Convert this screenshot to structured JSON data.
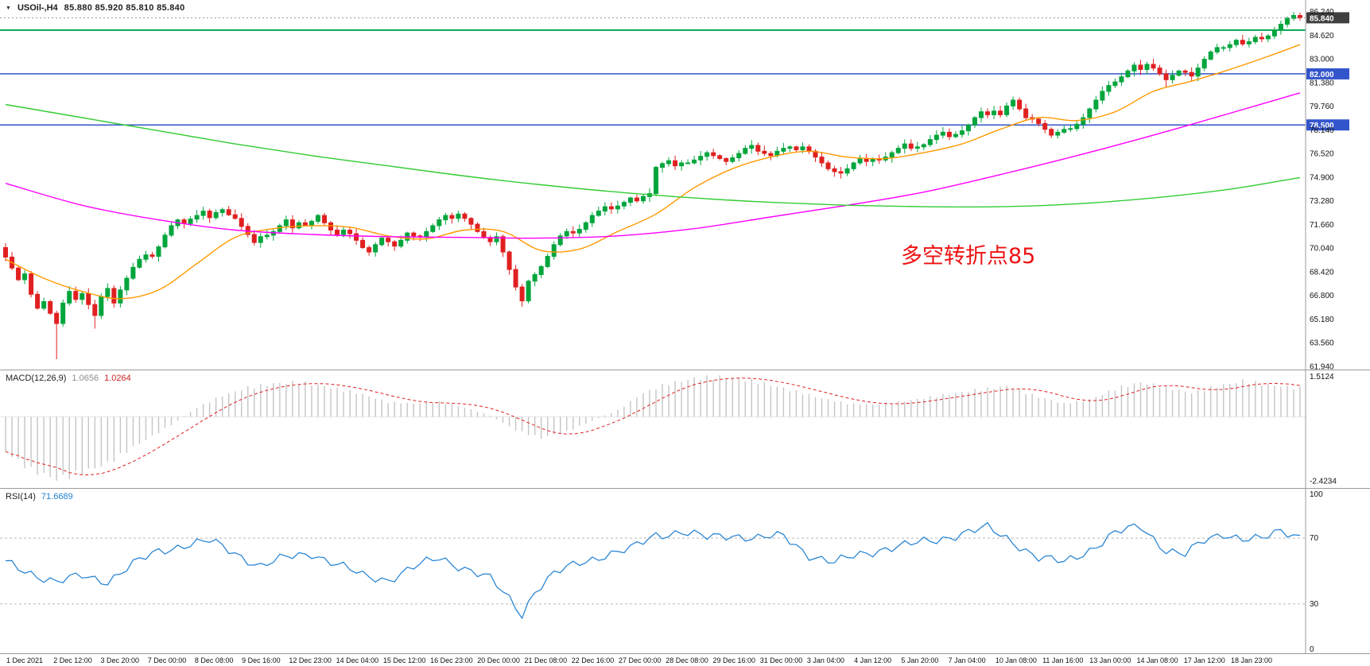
{
  "header": {
    "dropdown_icon": "▼"
  },
  "chart_data": {
    "type": "candlestick",
    "symbol_title": "USOil-,H4",
    "ohlc_line": "85.880 85.920 85.810 85.840",
    "annotation": {
      "text": "多空转折点85",
      "color": "#ee1212"
    },
    "x_axis_labels": [
      "1 Dec 2021",
      "2 Dec 12:00",
      "3 Dec 20:00",
      "7 Dec 00:00",
      "8 Dec 08:00",
      "9 Dec 16:00",
      "12 Dec 23:00",
      "14 Dec 04:00",
      "15 Dec 12:00",
      "16 Dec 23:00",
      "20 Dec 00:00",
      "21 Dec 08:00",
      "22 Dec 16:00",
      "27 Dec 00:00",
      "28 Dec 08:00",
      "29 Dec 16:00",
      "31 Dec 00:00",
      "3 Jan 04:00",
      "4 Jan 12:00",
      "5 Jan 20:00",
      "7 Jan 04:00",
      "10 Jan 08:00",
      "11 Jan 16:00",
      "13 Jan 00:00",
      "14 Jan 08:00",
      "17 Jan 12:00",
      "18 Jan 23:00"
    ],
    "main": {
      "y_min": 61.8,
      "y_max": 86.95,
      "y_axis_labels": [
        "86.240",
        "84.620",
        "83.000",
        "81.380",
        "79.760",
        "78.140",
        "76.520",
        "74.900",
        "73.280",
        "71.660",
        "70.040",
        "68.420",
        "66.800",
        "65.180",
        "63.560",
        "61.940"
      ],
      "levels": [
        {
          "price": 85.0,
          "color": "#00a651",
          "width": 2,
          "label": null
        },
        {
          "price": 82.0,
          "color": "#3355cc",
          "width": 1.5,
          "label": "82.000"
        },
        {
          "price": 78.5,
          "color": "#3355cc",
          "width": 1.5,
          "label": "78.500"
        }
      ],
      "current_price": 85.84,
      "current_price_label": "85.840",
      "current_tag_bg": "#404040",
      "up_color": "#00a53c",
      "down_color": "#e02020",
      "first_open": 70.1,
      "closes": [
        69.45,
        68.7,
        67.9,
        68.3,
        66.9,
        65.95,
        66.4,
        65.6,
        64.9,
        66.3,
        67.1,
        66.55,
        66.95,
        66.2,
        65.45,
        66.75,
        67.3,
        66.3,
        67.2,
        68.0,
        68.75,
        69.3,
        69.6,
        69.5,
        70.15,
        70.95,
        71.6,
        72.0,
        71.75,
        72.05,
        72.3,
        72.6,
        72.15,
        72.5,
        72.7,
        72.35,
        72.1,
        71.55,
        71.0,
        70.45,
        70.85,
        70.95,
        71.2,
        71.6,
        72.0,
        71.45,
        71.8,
        71.65,
        71.9,
        72.3,
        71.8,
        71.3,
        71.0,
        71.3,
        71.05,
        70.6,
        70.1,
        69.8,
        70.3,
        70.75,
        70.5,
        70.2,
        70.6,
        71.1,
        70.9,
        70.85,
        71.2,
        71.6,
        72.0,
        72.3,
        72.1,
        72.4,
        72.1,
        71.7,
        71.2,
        70.8,
        70.5,
        70.85,
        69.8,
        68.6,
        67.4,
        66.45,
        67.8,
        68.25,
        68.8,
        69.5,
        70.3,
        70.9,
        71.2,
        71.1,
        71.35,
        71.8,
        72.3,
        72.6,
        72.9,
        72.75,
        72.95,
        73.2,
        73.5,
        73.3,
        73.6,
        73.8,
        75.6,
        75.85,
        76.05,
        75.7,
        75.9,
        75.9,
        76.1,
        76.35,
        76.6,
        76.4,
        76.2,
        76.0,
        76.25,
        76.55,
        76.9,
        77.1,
        76.7,
        76.55,
        76.4,
        76.7,
        76.9,
        77.0,
        76.8,
        77.0,
        76.7,
        76.3,
        75.9,
        75.5,
        75.3,
        75.2,
        75.5,
        75.9,
        76.2,
        76.0,
        76.15,
        76.1,
        76.3,
        76.6,
        76.9,
        77.2,
        76.9,
        77.0,
        77.15,
        77.5,
        77.8,
        78.0,
        77.7,
        77.85,
        78.1,
        78.5,
        79.0,
        79.4,
        79.2,
        79.45,
        79.2,
        79.8,
        80.2,
        79.6,
        79.0,
        78.9,
        78.6,
        78.2,
        77.8,
        78.0,
        78.2,
        78.25,
        78.55,
        79.0,
        79.6,
        80.2,
        80.8,
        81.2,
        81.45,
        81.8,
        82.2,
        82.6,
        82.3,
        82.65,
        82.4,
        82.0,
        81.6,
        81.9,
        82.2,
        82.1,
        81.85,
        82.4,
        83.0,
        83.5,
        83.8,
        83.8,
        84.0,
        84.3,
        84.05,
        84.2,
        84.5,
        84.4,
        84.6,
        85.0,
        85.4,
        85.8,
        86.0,
        85.84
      ],
      "wick_overrides": {
        "0": {
          "high": 70.4
        },
        "8": {
          "low": 62.45
        },
        "14": {
          "low": 64.55
        },
        "81": {
          "low": 66.05
        },
        "158": {
          "high": 80.45
        },
        "164": {
          "low": 77.6
        },
        "182": {
          "low": 81.1
        },
        "202": {
          "high": 86.24
        }
      },
      "ma_lines": [
        {
          "name": "ma_fast",
          "color": "#ff9900",
          "points": [
            [
              0,
              69.3
            ],
            [
              6,
              68.0
            ],
            [
              12,
              67.1
            ],
            [
              18,
              66.6
            ],
            [
              24,
              67.2
            ],
            [
              30,
              69.0
            ],
            [
              36,
              70.8
            ],
            [
              42,
              71.4
            ],
            [
              48,
              71.6
            ],
            [
              54,
              71.5
            ],
            [
              60,
              70.9
            ],
            [
              66,
              70.7
            ],
            [
              72,
              71.3
            ],
            [
              78,
              71.2
            ],
            [
              84,
              69.9
            ],
            [
              90,
              70.0
            ],
            [
              96,
              71.2
            ],
            [
              102,
              72.4
            ],
            [
              108,
              74.2
            ],
            [
              114,
              75.5
            ],
            [
              120,
              76.3
            ],
            [
              126,
              76.7
            ],
            [
              132,
              76.3
            ],
            [
              138,
              76.2
            ],
            [
              144,
              76.6
            ],
            [
              150,
              77.2
            ],
            [
              156,
              78.2
            ],
            [
              162,
              79.0
            ],
            [
              168,
              78.8
            ],
            [
              174,
              79.4
            ],
            [
              180,
              80.8
            ],
            [
              186,
              81.5
            ],
            [
              192,
              82.3
            ],
            [
              198,
              83.2
            ],
            [
              203,
              84.0
            ]
          ]
        },
        {
          "name": "ma_mid",
          "color": "#ff00ff",
          "points": [
            [
              0,
              74.5
            ],
            [
              12,
              73.0
            ],
            [
              24,
              72.0
            ],
            [
              36,
              71.3
            ],
            [
              48,
              71.0
            ],
            [
              60,
              70.85
            ],
            [
              72,
              70.8
            ],
            [
              84,
              70.75
            ],
            [
              96,
              70.9
            ],
            [
              108,
              71.4
            ],
            [
              120,
              72.2
            ],
            [
              132,
              73.0
            ],
            [
              144,
              73.9
            ],
            [
              156,
              75.1
            ],
            [
              168,
              76.4
            ],
            [
              180,
              77.8
            ],
            [
              192,
              79.3
            ],
            [
              203,
              80.7
            ]
          ]
        },
        {
          "name": "ma_slow",
          "color": "#33cc33",
          "points": [
            [
              0,
              79.9
            ],
            [
              12,
              79.0
            ],
            [
              24,
              78.1
            ],
            [
              36,
              77.2
            ],
            [
              48,
              76.4
            ],
            [
              60,
              75.7
            ],
            [
              72,
              75.0
            ],
            [
              84,
              74.4
            ],
            [
              96,
              73.9
            ],
            [
              108,
              73.5
            ],
            [
              120,
              73.2
            ],
            [
              132,
              73.0
            ],
            [
              144,
              72.9
            ],
            [
              156,
              72.9
            ],
            [
              168,
              73.1
            ],
            [
              180,
              73.5
            ],
            [
              192,
              74.1
            ],
            [
              203,
              74.9
            ]
          ]
        }
      ]
    },
    "macd": {
      "label": "MACD(12,26,9)",
      "value_main": "1.0656",
      "value_signal": "1.0264",
      "y_max": 1.75,
      "y_min": -2.65,
      "axis_labels": [
        "1.5124",
        "-2.4234"
      ],
      "hist_color": "#c5c5c5",
      "signal_color": "#dd2222",
      "hist_anchors": [
        [
          0,
          -1.3
        ],
        [
          4,
          -2.0
        ],
        [
          8,
          -2.35
        ],
        [
          12,
          -2.1
        ],
        [
          16,
          -1.75
        ],
        [
          20,
          -1.15
        ],
        [
          26,
          -0.3
        ],
        [
          30,
          0.35
        ],
        [
          34,
          0.8
        ],
        [
          38,
          1.1
        ],
        [
          42,
          1.25
        ],
        [
          46,
          1.3
        ],
        [
          50,
          1.15
        ],
        [
          56,
          0.85
        ],
        [
          60,
          0.55
        ],
        [
          64,
          0.5
        ],
        [
          68,
          0.55
        ],
        [
          72,
          0.35
        ],
        [
          76,
          0.05
        ],
        [
          80,
          -0.5
        ],
        [
          84,
          -0.8
        ],
        [
          88,
          -0.55
        ],
        [
          92,
          -0.15
        ],
        [
          96,
          0.25
        ],
        [
          100,
          0.9
        ],
        [
          104,
          1.25
        ],
        [
          108,
          1.45
        ],
        [
          112,
          1.5
        ],
        [
          116,
          1.4
        ],
        [
          120,
          1.2
        ],
        [
          124,
          0.95
        ],
        [
          128,
          0.7
        ],
        [
          132,
          0.5
        ],
        [
          136,
          0.45
        ],
        [
          140,
          0.55
        ],
        [
          144,
          0.7
        ],
        [
          148,
          0.85
        ],
        [
          152,
          1.0
        ],
        [
          157,
          1.15
        ],
        [
          162,
          0.75
        ],
        [
          166,
          0.5
        ],
        [
          170,
          0.65
        ],
        [
          174,
          1.05
        ],
        [
          178,
          1.3
        ],
        [
          182,
          1.1
        ],
        [
          186,
          0.9
        ],
        [
          190,
          1.15
        ],
        [
          194,
          1.35
        ],
        [
          198,
          1.2
        ],
        [
          203,
          1.07
        ]
      ]
    },
    "rsi": {
      "label": "RSI(14)",
      "value": "71.6689",
      "y_min": 0,
      "y_max": 100,
      "levels": [
        70,
        30
      ],
      "axis_labels": [
        "100",
        "70",
        "30",
        "0"
      ],
      "line_color": "#1e7fd2",
      "anchors": [
        [
          0,
          55
        ],
        [
          4,
          49
        ],
        [
          8,
          43
        ],
        [
          12,
          47
        ],
        [
          16,
          44
        ],
        [
          20,
          54
        ],
        [
          24,
          62
        ],
        [
          28,
          66
        ],
        [
          32,
          68
        ],
        [
          36,
          61
        ],
        [
          40,
          53
        ],
        [
          44,
          58
        ],
        [
          48,
          61
        ],
        [
          52,
          54
        ],
        [
          56,
          47
        ],
        [
          60,
          45
        ],
        [
          64,
          52
        ],
        [
          68,
          58
        ],
        [
          72,
          52
        ],
        [
          76,
          45
        ],
        [
          79,
          33
        ],
        [
          81,
          24
        ],
        [
          83,
          38
        ],
        [
          86,
          48
        ],
        [
          90,
          55
        ],
        [
          94,
          60
        ],
        [
          98,
          63
        ],
        [
          102,
          72
        ],
        [
          106,
          74
        ],
        [
          110,
          70
        ],
        [
          114,
          72
        ],
        [
          118,
          70
        ],
        [
          122,
          71
        ],
        [
          126,
          60
        ],
        [
          130,
          55
        ],
        [
          134,
          60
        ],
        [
          138,
          64
        ],
        [
          142,
          66
        ],
        [
          146,
          69
        ],
        [
          150,
          73
        ],
        [
          154,
          76
        ],
        [
          158,
          68
        ],
        [
          162,
          58
        ],
        [
          166,
          55
        ],
        [
          170,
          63
        ],
        [
          174,
          73
        ],
        [
          178,
          77
        ],
        [
          182,
          63
        ],
        [
          185,
          60
        ],
        [
          188,
          68
        ],
        [
          191,
          73
        ],
        [
          194,
          70
        ],
        [
          197,
          69
        ],
        [
          200,
          74
        ],
        [
          203,
          71.7
        ]
      ]
    }
  }
}
